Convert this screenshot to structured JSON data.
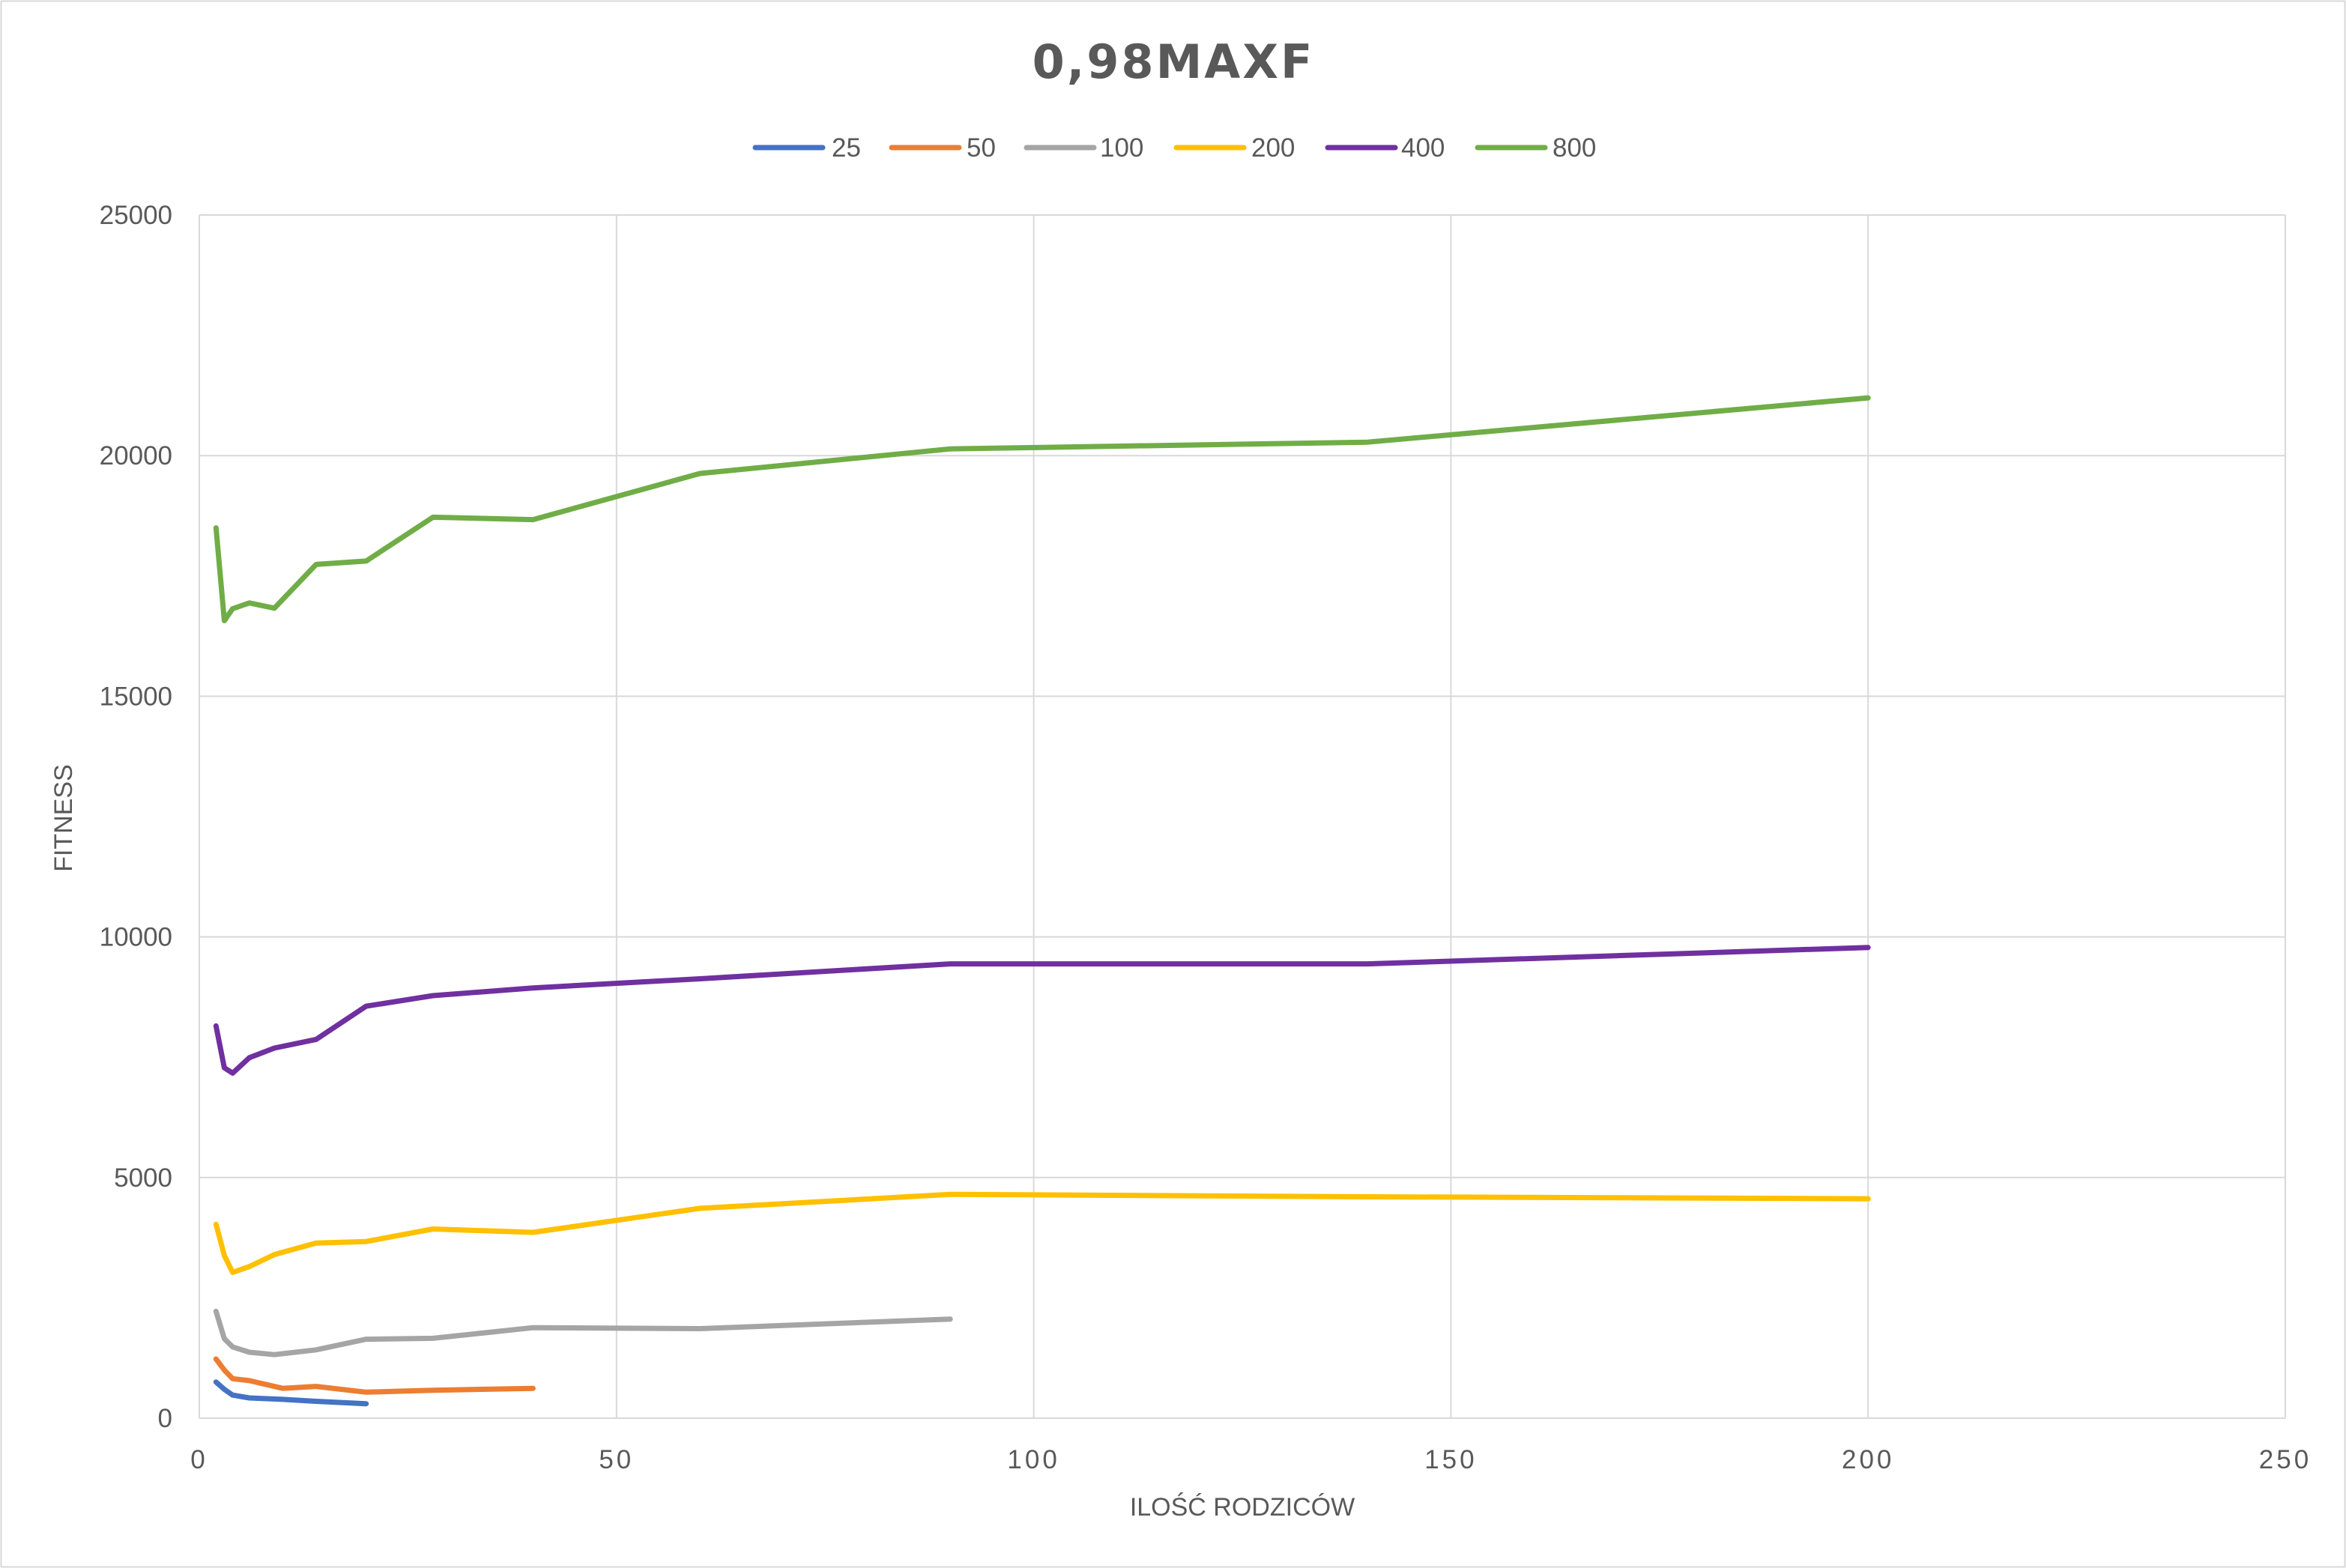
{
  "chart_data": {
    "type": "line",
    "title": "0,98MAXF",
    "xlabel": "ILOŚĆ RODZICÓW",
    "ylabel": "FITNESS",
    "xlim": [
      0,
      250
    ],
    "ylim": [
      0,
      25000
    ],
    "x_ticks": [
      "0",
      "50",
      "100",
      "150",
      "200",
      "250"
    ],
    "y_ticks": [
      "0",
      "5000",
      "10000",
      "15000",
      "20000",
      "25000"
    ],
    "grid": true,
    "legend": "top",
    "series": [
      {
        "name": "25",
        "color": "#4472C4",
        "points": [
          [
            2,
            750
          ],
          [
            3,
            600
          ],
          [
            4,
            480
          ],
          [
            6,
            420
          ],
          [
            10,
            390
          ],
          [
            14,
            350
          ],
          [
            20,
            300
          ]
        ]
      },
      {
        "name": "50",
        "color": "#ED7D31",
        "points": [
          [
            2,
            1230
          ],
          [
            3,
            1000
          ],
          [
            4,
            820
          ],
          [
            6,
            780
          ],
          [
            10,
            620
          ],
          [
            14,
            660
          ],
          [
            20,
            540
          ],
          [
            28,
            580
          ],
          [
            40,
            620
          ]
        ]
      },
      {
        "name": "100",
        "color": "#A5A5A5",
        "points": [
          [
            2,
            2220
          ],
          [
            3,
            1650
          ],
          [
            4,
            1480
          ],
          [
            6,
            1370
          ],
          [
            9,
            1320
          ],
          [
            14,
            1420
          ],
          [
            20,
            1640
          ],
          [
            28,
            1660
          ],
          [
            40,
            1880
          ],
          [
            60,
            1860
          ],
          [
            90,
            2060
          ]
        ]
      },
      {
        "name": "200",
        "color": "#FFC000",
        "points": [
          [
            2,
            4030
          ],
          [
            3,
            3380
          ],
          [
            4,
            3030
          ],
          [
            6,
            3150
          ],
          [
            9,
            3400
          ],
          [
            14,
            3640
          ],
          [
            20,
            3670
          ],
          [
            28,
            3930
          ],
          [
            40,
            3860
          ],
          [
            60,
            4360
          ],
          [
            90,
            4650
          ],
          [
            140,
            4600
          ],
          [
            200,
            4560
          ]
        ]
      },
      {
        "name": "400",
        "color": "#7030A0",
        "points": [
          [
            2,
            8150
          ],
          [
            3,
            7280
          ],
          [
            4,
            7170
          ],
          [
            6,
            7490
          ],
          [
            9,
            7690
          ],
          [
            14,
            7870
          ],
          [
            20,
            8560
          ],
          [
            28,
            8780
          ],
          [
            40,
            8940
          ],
          [
            60,
            9130
          ],
          [
            90,
            9440
          ],
          [
            140,
            9440
          ],
          [
            200,
            9780
          ]
        ]
      },
      {
        "name": "800",
        "color": "#70AD47",
        "points": [
          [
            2,
            18500
          ],
          [
            3,
            16570
          ],
          [
            4,
            16820
          ],
          [
            6,
            16940
          ],
          [
            9,
            16830
          ],
          [
            14,
            17740
          ],
          [
            20,
            17810
          ],
          [
            28,
            18720
          ],
          [
            40,
            18670
          ],
          [
            60,
            19630
          ],
          [
            90,
            20140
          ],
          [
            140,
            20280
          ],
          [
            200,
            21200
          ]
        ]
      }
    ]
  }
}
